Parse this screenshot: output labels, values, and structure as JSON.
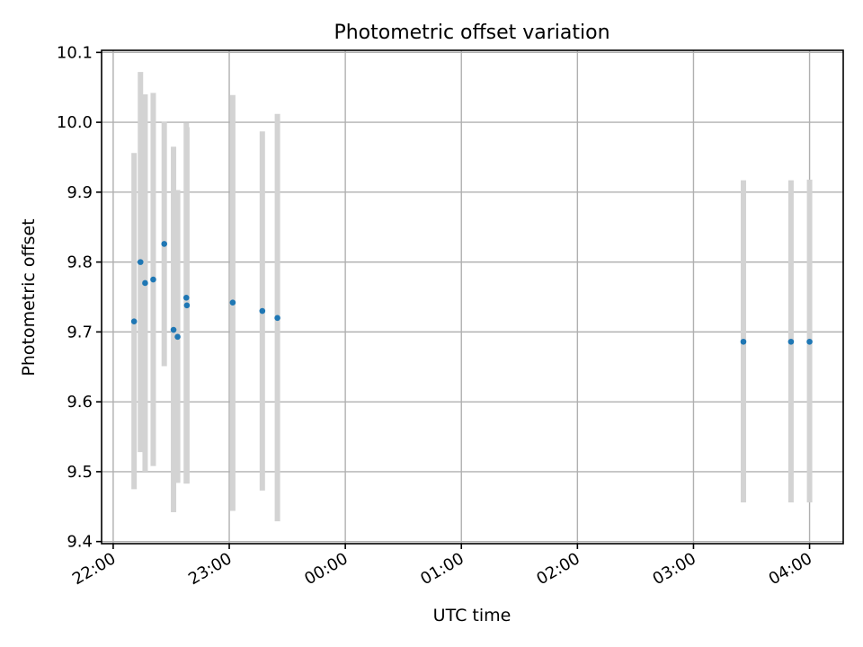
{
  "chart_data": {
    "type": "scatter",
    "title": "Photometric offset variation",
    "xlabel": "UTC time",
    "ylabel": "Photometric offset",
    "x_tick_labels": [
      "22:00",
      "23:00",
      "00:00",
      "01:00",
      "02:00",
      "03:00",
      "04:00"
    ],
    "y_tick_labels": [
      "9.4",
      "9.5",
      "9.6",
      "9.7",
      "9.8",
      "9.9",
      "10.0",
      "10.1"
    ],
    "x_ticks_hours": [
      0,
      1,
      2,
      3,
      4,
      5,
      6
    ],
    "y_ticks": [
      9.4,
      9.5,
      9.6,
      9.7,
      9.8,
      9.9,
      10.0,
      10.1
    ],
    "xlim_hours": [
      -0.1,
      6.29
    ],
    "ylim": [
      9.397,
      10.103
    ],
    "grid": true,
    "x_axis_note": "x values are hours after 22:00 UTC",
    "points": [
      {
        "x": 0.18,
        "y": 9.715,
        "ylow": 9.475,
        "yhigh": 9.956
      },
      {
        "x": 0.235,
        "y": 9.8,
        "ylow": 9.528,
        "yhigh": 10.072
      },
      {
        "x": 0.275,
        "y": 9.77,
        "ylow": 9.5,
        "yhigh": 10.04
      },
      {
        "x": 0.345,
        "y": 9.775,
        "ylow": 9.508,
        "yhigh": 10.042
      },
      {
        "x": 0.44,
        "y": 9.826,
        "ylow": 9.651,
        "yhigh": 10.001
      },
      {
        "x": 0.52,
        "y": 9.703,
        "ylow": 9.442,
        "yhigh": 9.965
      },
      {
        "x": 0.555,
        "y": 9.693,
        "ylow": 9.484,
        "yhigh": 9.903
      },
      {
        "x": 0.63,
        "y": 9.749,
        "ylow": 9.483,
        "yhigh": 9.999
      },
      {
        "x": 0.635,
        "y": 9.738,
        "ylow": 9.483,
        "yhigh": 9.993
      },
      {
        "x": 1.03,
        "y": 9.742,
        "ylow": 9.444,
        "yhigh": 10.039
      },
      {
        "x": 1.285,
        "y": 9.73,
        "ylow": 9.473,
        "yhigh": 9.987
      },
      {
        "x": 1.415,
        "y": 9.72,
        "ylow": 9.429,
        "yhigh": 10.012
      },
      {
        "x": 5.43,
        "y": 9.686,
        "ylow": 9.456,
        "yhigh": 9.917
      },
      {
        "x": 5.84,
        "y": 9.686,
        "ylow": 9.456,
        "yhigh": 9.917
      },
      {
        "x": 6.0,
        "y": 9.686,
        "ylow": 9.456,
        "yhigh": 9.918
      }
    ],
    "colors": {
      "points": "#1f77b4",
      "errorbars": "#d3d3d3",
      "grid": "#b0b0b0"
    }
  }
}
